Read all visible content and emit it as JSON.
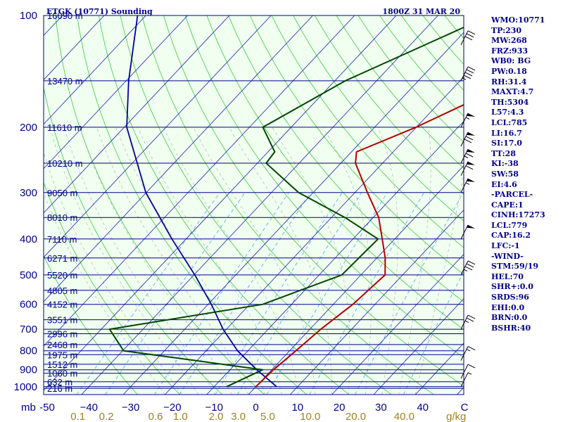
{
  "header": {
    "station": "ETGK (10771) Sounding",
    "time": "1800Z 31 MAR 20"
  },
  "indices": [
    "WMO:10771",
    "TP:230",
    "MW:268",
    "FRZ:933",
    "WB0: BG",
    "PW:0.18",
    "RH:31.4",
    "MAXT:4.7",
    "TH:5304",
    "L57:4.3",
    "LCL:785",
    "LI:16.7",
    "SI:17.0",
    "TT:28",
    "KI:-38",
    "SW:58",
    "EI:4.6",
    "-PARCEL-",
    "CAPE:1",
    "CINH:17273",
    "LCL:779",
    "CAP:16.2",
    "LFC:-1",
    "-WIND-",
    "STM:59/19",
    "HEL:70",
    "SHR+:0.0",
    "SRDS:96",
    "EHI:0.0",
    "BRN:0.0",
    "BSHR:40"
  ],
  "colors": {
    "background": "#f0fff0",
    "isobar": "#00008b",
    "isotherm": "#1c1cb4",
    "dry_adiabat": "#3cc83c",
    "moist_adiabat": "#b4b4b4",
    "mixing_ratio": "#50a0f0",
    "temperature": "#b40000",
    "dewpoint": "#004600",
    "parcel": "#00009b",
    "wind": "#000000",
    "label": "#00008b",
    "mixing_label": "#a08020"
  },
  "chart_data": {
    "type": "skew-t",
    "pressure_levels": [
      {
        "p": 1000,
        "label": "1000"
      },
      {
        "p": 900,
        "label": "900"
      },
      {
        "p": 800,
        "label": "800"
      },
      {
        "p": 700,
        "label": "700"
      },
      {
        "p": 600,
        "label": "600"
      },
      {
        "p": 500,
        "label": "500"
      },
      {
        "p": 400,
        "label": "400"
      },
      {
        "p": 300,
        "label": "300"
      },
      {
        "p": 200,
        "label": "200"
      },
      {
        "p": 100,
        "label": "100"
      }
    ],
    "pressure_unit": "mb",
    "heights": [
      {
        "p": 1010,
        "label": "216 m"
      },
      {
        "p": 970,
        "label": "632 m"
      },
      {
        "p": 920,
        "label": "1060 m"
      },
      {
        "p": 870,
        "label": "1512 m"
      },
      {
        "p": 820,
        "label": "1975 m"
      },
      {
        "p": 770,
        "label": "2468 m"
      },
      {
        "p": 720,
        "label": "2996 m"
      },
      {
        "p": 660,
        "label": "3551 m"
      },
      {
        "p": 600,
        "label": "4152 m"
      },
      {
        "p": 550,
        "label": "4805 m"
      },
      {
        "p": 500,
        "label": "5520 m"
      },
      {
        "p": 450,
        "label": "6271 m"
      },
      {
        "p": 400,
        "label": "7110 m"
      },
      {
        "p": 350,
        "label": "8010 m"
      },
      {
        "p": 300,
        "label": "9050 m"
      },
      {
        "p": 250,
        "label": "10210 m"
      },
      {
        "p": 200,
        "label": "11610 m"
      },
      {
        "p": 150,
        "label": "13470 m"
      },
      {
        "p": 100,
        "label": "16090 m"
      }
    ],
    "temperature_ticks": [
      {
        "t": -50,
        "label": "-50"
      },
      {
        "t": -40,
        "label": "−40"
      },
      {
        "t": -30,
        "label": "−30"
      },
      {
        "t": -20,
        "label": "−20"
      },
      {
        "t": -10,
        "label": "−10"
      },
      {
        "t": 0,
        "label": "0"
      },
      {
        "t": 10,
        "label": "10"
      },
      {
        "t": 20,
        "label": "20"
      },
      {
        "t": 30,
        "label": "30"
      },
      {
        "t": 40,
        "label": "40"
      },
      {
        "t": 50,
        "label": "C"
      }
    ],
    "mixing_ratio_labels": [
      {
        "w": 0.1,
        "label": "0.1"
      },
      {
        "w": 0.2,
        "label": "0.2"
      },
      {
        "w": 0.6,
        "label": "0.6"
      },
      {
        "w": 1.0,
        "label": "1.0"
      },
      {
        "w": 2.0,
        "label": "2.0"
      },
      {
        "w": 3.0,
        "label": "3.0"
      },
      {
        "w": 5.0,
        "label": "5.0"
      },
      {
        "w": 10.0,
        "label": "10.0"
      },
      {
        "w": 20.0,
        "label": "20.0"
      },
      {
        "w": 40.0,
        "label": "40.0"
      }
    ],
    "mixing_ratio_unit": "g/kg",
    "temperature": [
      {
        "p": 1000,
        "t": 0.0
      },
      {
        "p": 900,
        "t": 0.4
      },
      {
        "p": 800,
        "t": 1.5
      },
      {
        "p": 700,
        "t": 2.6
      },
      {
        "p": 600,
        "t": 4.7
      },
      {
        "p": 500,
        "t": 5.8
      },
      {
        "p": 450,
        "t": 2.0
      },
      {
        "p": 400,
        "t": -3.0
      },
      {
        "p": 350,
        "t": -8.7
      },
      {
        "p": 300,
        "t": -17.0
      },
      {
        "p": 250,
        "t": -26.5
      },
      {
        "p": 233,
        "t": -28.8
      },
      {
        "p": 200,
        "t": -20.1
      },
      {
        "p": 150,
        "t": -6.9
      },
      {
        "p": 100,
        "t": -1.5
      }
    ],
    "dewpoint": [
      {
        "p": 1000,
        "t": -7.0
      },
      {
        "p": 900,
        "t": -2.2
      },
      {
        "p": 800,
        "t": -39.8
      },
      {
        "p": 700,
        "t": -48.0
      },
      {
        "p": 600,
        "t": -16.9
      },
      {
        "p": 500,
        "t": -4.6
      },
      {
        "p": 400,
        "t": -4.0
      },
      {
        "p": 350,
        "t": -16.8
      },
      {
        "p": 300,
        "t": -33.5
      },
      {
        "p": 250,
        "t": -47.9
      },
      {
        "p": 233,
        "t": -48.4
      },
      {
        "p": 200,
        "t": -56.8
      },
      {
        "p": 150,
        "t": -47.5
      },
      {
        "p": 100,
        "t": -27.5
      }
    ],
    "parcel": [
      {
        "p": 1000,
        "t": 5.0
      },
      {
        "p": 900,
        "t": -3.6
      },
      {
        "p": 800,
        "t": -12.5
      },
      {
        "p": 700,
        "t": -20.8
      },
      {
        "p": 600,
        "t": -29.2
      },
      {
        "p": 500,
        "t": -39.8
      },
      {
        "p": 400,
        "t": -53.4
      },
      {
        "p": 300,
        "t": -70.1
      },
      {
        "p": 200,
        "t": -89.4
      },
      {
        "p": 150,
        "t": -99.4
      },
      {
        "p": 100,
        "t": -112.0
      }
    ],
    "wind_barbs": [
      {
        "p": 1000,
        "speed": 5
      },
      {
        "p": 950,
        "speed": 10
      },
      {
        "p": 850,
        "speed": 15
      },
      {
        "p": 700,
        "speed": 25
      },
      {
        "p": 500,
        "speed": 35
      },
      {
        "p": 400,
        "speed": 50
      },
      {
        "p": 300,
        "speed": 55
      },
      {
        "p": 270,
        "speed": 60
      },
      {
        "p": 250,
        "speed": 65
      },
      {
        "p": 225,
        "speed": 70
      },
      {
        "p": 200,
        "speed": 55
      },
      {
        "p": 150,
        "speed": 45
      },
      {
        "p": 120,
        "speed": 30
      }
    ],
    "p_range": [
      1000,
      100
    ],
    "t_range": [
      -50,
      50
    ]
  }
}
